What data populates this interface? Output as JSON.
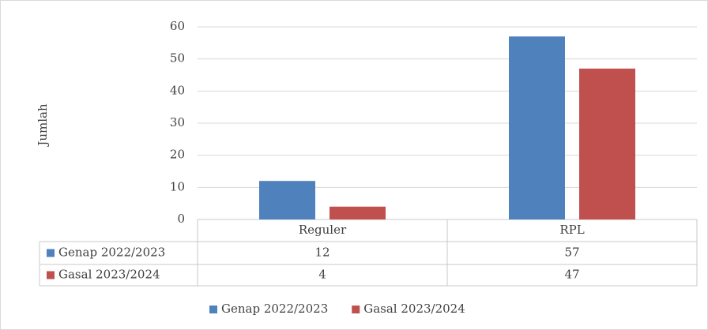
{
  "chart_data": {
    "type": "bar",
    "ylabel": "Jumlah",
    "categories": [
      "Reguler",
      "RPL"
    ],
    "series": [
      {
        "name": "Genap 2022/2023",
        "color": "#4f81bd",
        "values": [
          12,
          57
        ]
      },
      {
        "name": "Gasal 2023/2024",
        "color": "#c0504d",
        "values": [
          4,
          47
        ]
      }
    ],
    "ylim": [
      0,
      60
    ],
    "yticks": [
      0,
      10,
      20,
      30,
      40,
      50,
      60
    ],
    "grid": true,
    "legend": "bottom"
  }
}
